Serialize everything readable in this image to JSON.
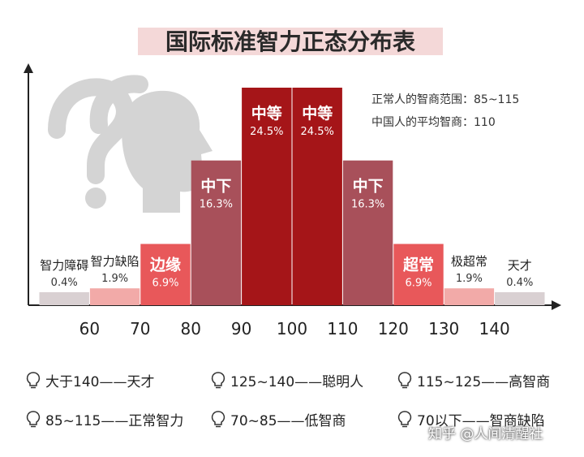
{
  "chart_data": {
    "type": "bar",
    "title": "国际标准智力正态分布表",
    "xlabel": "",
    "ylabel": "",
    "x_ticks": [
      "60",
      "70",
      "80",
      "90",
      "100",
      "110",
      "120",
      "130",
      "140"
    ],
    "bars": [
      {
        "range": [
          50,
          60
        ],
        "label": "智力障碍",
        "value": 0.4,
        "value_text": "0.4%",
        "color": "#d9d0d2"
      },
      {
        "range": [
          60,
          70
        ],
        "label": "智力缺陷",
        "value": 1.9,
        "value_text": "1.9%",
        "color": "#f2aaa8"
      },
      {
        "range": [
          70,
          80
        ],
        "label": "边缘",
        "value": 6.9,
        "value_text": "6.9%",
        "color": "#e8585a"
      },
      {
        "range": [
          80,
          90
        ],
        "label": "中下",
        "value": 16.3,
        "value_text": "16.3%",
        "color": "#a8505a"
      },
      {
        "range": [
          90,
          100
        ],
        "label": "中等",
        "value": 24.5,
        "value_text": "24.5%",
        "color": "#a51518"
      },
      {
        "range": [
          100,
          110
        ],
        "label": "中等",
        "value": 24.5,
        "value_text": "24.5%",
        "color": "#a51518"
      },
      {
        "range": [
          110,
          120
        ],
        "label": "中下",
        "value": 16.3,
        "value_text": "16.3%",
        "color": "#a8505a"
      },
      {
        "range": [
          120,
          130
        ],
        "label": "超常",
        "value": 6.9,
        "value_text": "6.9%",
        "color": "#e8585a"
      },
      {
        "range": [
          130,
          140
        ],
        "label": "极超常",
        "value": 1.9,
        "value_text": "1.9%",
        "color": "#f2aaa8"
      },
      {
        "range": [
          140,
          150
        ],
        "label": "天才",
        "value": 0.4,
        "value_text": "0.4%",
        "color": "#d9d0d2"
      }
    ],
    "annotations": [
      "正常人的智商范围：85~115",
      "中国人的平均智商：110"
    ],
    "grid": false
  },
  "legend": [
    "大于140——天才",
    "125~140——聪明人",
    "115~125——高智商",
    "85~115——正常智力",
    "70~85——低智商",
    "70以下——智商缺陷"
  ],
  "watermark": "知乎 @人间清醒社",
  "icons": {
    "decor": "question-head-icon",
    "legend_marker": "lightbulb-icon"
  }
}
